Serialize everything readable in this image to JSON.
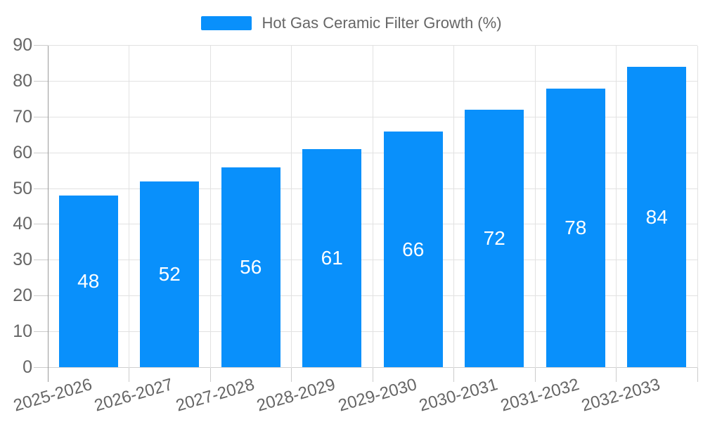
{
  "legend": {
    "label": "Hot Gas Ceramic Filter Growth (%)"
  },
  "colors": {
    "bar": "#0990fb",
    "grid": "#e2e2e2",
    "x_axis_line": "#d0d0d0",
    "y_axis_line": "#9b9b9b",
    "tick": "#cccccc",
    "axis_text": "#666666",
    "value_text": "#ffffff",
    "background": "#ffffff"
  },
  "chart_data": {
    "type": "bar",
    "title": "Hot Gas Ceramic Filter Growth (%)",
    "categories": [
      "2025-2026",
      "2026-2027",
      "2027-2028",
      "2028-2029",
      "2029-2030",
      "2030-2031",
      "2031-2032",
      "2032-2033"
    ],
    "values": [
      48,
      52,
      56,
      61,
      66,
      72,
      78,
      84
    ],
    "xlabel": "",
    "ylabel": "",
    "ylim": [
      0,
      90
    ],
    "ytick_step": 10,
    "ytick_labels": [
      "0",
      "10",
      "20",
      "30",
      "40",
      "50",
      "60",
      "70",
      "80",
      "90"
    ],
    "grid": true,
    "legend_position": "top-center",
    "x_label_rotation_deg": -16,
    "value_label_position": "inside-center"
  }
}
